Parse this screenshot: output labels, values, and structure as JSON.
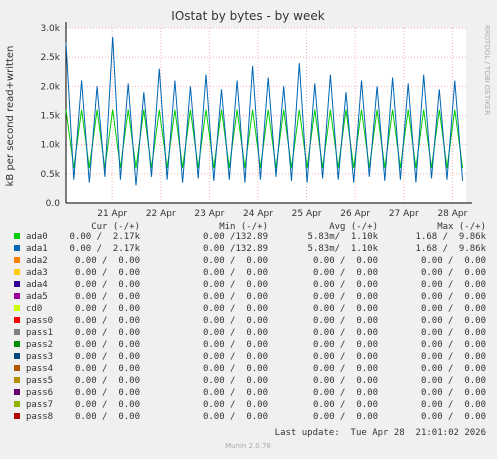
{
  "chart_data": {
    "type": "line",
    "title": "IOstat by bytes - by week",
    "y_label": "kB per second read+written",
    "side_label": "RRDTOOL / TOBI OETIKER",
    "columns": [
      "Cur (-/+)",
      "Min (-/+)",
      "Avg (-/+)",
      "Max (-/+)"
    ],
    "footer": "Last update:  Tue Apr 28  21:01:02 2026",
    "version": "Munin 2.0.76",
    "xlim": [
      0,
      8.23
    ],
    "xticks": [
      {
        "value": 0.95,
        "label": "21 Apr"
      },
      {
        "value": 1.95,
        "label": "22 Apr"
      },
      {
        "value": 2.95,
        "label": "23 Apr"
      },
      {
        "value": 3.95,
        "label": "24 Apr"
      },
      {
        "value": 4.95,
        "label": "25 Apr"
      },
      {
        "value": 5.95,
        "label": "26 Apr"
      },
      {
        "value": 6.95,
        "label": "27 Apr"
      },
      {
        "value": 7.95,
        "label": "28 Apr"
      }
    ],
    "ylim": [
      0,
      3000
    ],
    "yticks": [
      {
        "value": 0,
        "label": "0.0"
      },
      {
        "value": 500,
        "label": "0.5k"
      },
      {
        "value": 1000,
        "label": "1.0k"
      },
      {
        "value": 1500,
        "label": "1.5k"
      },
      {
        "value": 2000,
        "label": "2.0k"
      },
      {
        "value": 2500,
        "label": "2.5k"
      },
      {
        "value": 3000,
        "label": "3.0k"
      }
    ],
    "grid": true,
    "x": [
      0,
      0.16,
      0.32,
      0.48,
      0.64,
      0.8,
      0.96,
      1.12,
      1.28,
      1.44,
      1.6,
      1.76,
      1.92,
      2.08,
      2.24,
      2.4,
      2.56,
      2.72,
      2.88,
      3.04,
      3.2,
      3.36,
      3.52,
      3.68,
      3.84,
      4,
      4.16,
      4.32,
      4.48,
      4.64,
      4.8,
      4.96,
      5.12,
      5.28,
      5.44,
      5.6,
      5.76,
      5.92,
      6.08,
      6.24,
      6.4,
      6.56,
      6.72,
      6.88,
      7.04,
      7.2,
      7.36,
      7.52,
      7.68,
      7.84,
      8,
      8.16
    ],
    "series": [
      {
        "name": "ada0",
        "color": "#00cc00",
        "cur": "0.00 /  2.17k",
        "min": "0.00 /132.89",
        "avg": "5.83m/  1.10k",
        "max": "1.68 /  9.86k",
        "values": [
          1600,
          600,
          1600,
          600,
          1600,
          600,
          1600,
          600,
          1600,
          600,
          1600,
          600,
          1600,
          600,
          1600,
          600,
          1600,
          600,
          1600,
          600,
          1600,
          600,
          1600,
          600,
          1600,
          600,
          1600,
          600,
          1600,
          600,
          1600,
          600,
          1600,
          600,
          1600,
          600,
          1600,
          600,
          1600,
          600,
          1600,
          600,
          1600,
          600,
          1600,
          600,
          1600,
          600,
          1600,
          600,
          1600,
          600
        ]
      },
      {
        "name": "ada1",
        "color": "#0066b3",
        "cur": "0.00 /  2.17k",
        "min": "0.00 /132.89",
        "avg": "5.83m/  1.10k",
        "max": "1.68 /  9.86k",
        "values": [
          2750,
          400,
          2100,
          350,
          2000,
          450,
          2850,
          400,
          2050,
          300,
          1900,
          450,
          2300,
          400,
          2100,
          350,
          2000,
          420,
          2200,
          380,
          1950,
          400,
          2100,
          350,
          2350,
          400,
          2150,
          450,
          2000,
          380,
          2400,
          350,
          2050,
          420,
          2200,
          400,
          1900,
          350,
          2100,
          450,
          2000,
          380,
          2150,
          400,
          2050,
          350,
          2200,
          420,
          1950,
          400,
          2100,
          380
        ]
      },
      {
        "name": "ada2",
        "color": "#ff8000",
        "cur": "0.00 /  0.00",
        "min": "0.00 /  0.00",
        "avg": "0.00 /  0.00",
        "max": "0.00 /  0.00"
      },
      {
        "name": "ada3",
        "color": "#ffcc00",
        "cur": "0.00 /  0.00",
        "min": "0.00 /  0.00",
        "avg": "0.00 /  0.00",
        "max": "0.00 /  0.00"
      },
      {
        "name": "ada4",
        "color": "#330099",
        "cur": "0.00 /  0.00",
        "min": "0.00 /  0.00",
        "avg": "0.00 /  0.00",
        "max": "0.00 /  0.00"
      },
      {
        "name": "ada5",
        "color": "#990099",
        "cur": "0.00 /  0.00",
        "min": "0.00 /  0.00",
        "avg": "0.00 /  0.00",
        "max": "0.00 /  0.00"
      },
      {
        "name": "cd0",
        "color": "#ccff00",
        "cur": "0.00 /  0.00",
        "min": "0.00 /  0.00",
        "avg": "0.00 /  0.00",
        "max": "0.00 /  0.00"
      },
      {
        "name": "pass0",
        "color": "#ff0000",
        "cur": "0.00 /  0.00",
        "min": "0.00 /  0.00",
        "avg": "0.00 /  0.00",
        "max": "0.00 /  0.00"
      },
      {
        "name": "pass1",
        "color": "#808080",
        "cur": "0.00 /  0.00",
        "min": "0.00 /  0.00",
        "avg": "0.00 /  0.00",
        "max": "0.00 /  0.00"
      },
      {
        "name": "pass2",
        "color": "#008f00",
        "cur": "0.00 /  0.00",
        "min": "0.00 /  0.00",
        "avg": "0.00 /  0.00",
        "max": "0.00 /  0.00"
      },
      {
        "name": "pass3",
        "color": "#00487d",
        "cur": "0.00 /  0.00",
        "min": "0.00 /  0.00",
        "avg": "0.00 /  0.00",
        "max": "0.00 /  0.00"
      },
      {
        "name": "pass4",
        "color": "#b35a00",
        "cur": "0.00 /  0.00",
        "min": "0.00 /  0.00",
        "avg": "0.00 /  0.00",
        "max": "0.00 /  0.00"
      },
      {
        "name": "pass5",
        "color": "#b38f00",
        "cur": "0.00 /  0.00",
        "min": "0.00 /  0.00",
        "avg": "0.00 /  0.00",
        "max": "0.00 /  0.00"
      },
      {
        "name": "pass6",
        "color": "#6b006b",
        "cur": "0.00 /  0.00",
        "min": "0.00 /  0.00",
        "avg": "0.00 /  0.00",
        "max": "0.00 /  0.00"
      },
      {
        "name": "pass7",
        "color": "#8fb300",
        "cur": "0.00 /  0.00",
        "min": "0.00 /  0.00",
        "avg": "0.00 /  0.00",
        "max": "0.00 /  0.00"
      },
      {
        "name": "pass8",
        "color": "#b30000",
        "cur": "0.00 /  0.00",
        "min": "0.00 /  0.00",
        "avg": "0.00 /  0.00",
        "max": "0.00 /  0.00"
      }
    ]
  }
}
